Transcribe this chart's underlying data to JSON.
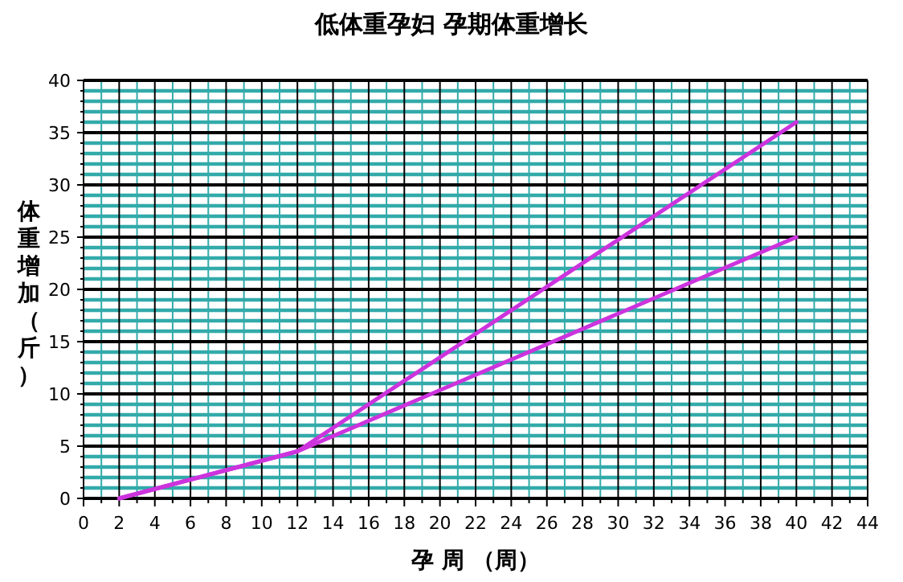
{
  "chart_data": {
    "type": "line",
    "title": "低体重孕妇  孕期体重增长",
    "xlabel": "孕  周  （周）",
    "ylabel": "体重增加（斤）",
    "xlim": [
      0,
      44
    ],
    "xticks": [
      0,
      {
        "value": 1,
        "label": null
      },
      2,
      {
        "value": 3,
        "label": null
      },
      4,
      {
        "value": 5,
        "label": null
      },
      6,
      {
        "value": 7,
        "label": null
      },
      8,
      {
        "value": 9,
        "label": null
      },
      10,
      {
        "value": 11,
        "label": null
      },
      12,
      {
        "value": 13,
        "label": null
      },
      14,
      {
        "value": 15,
        "label": null
      },
      16,
      {
        "value": 17,
        "label": null
      },
      18,
      {
        "value": 19,
        "label": null
      },
      20,
      {
        "value": 21,
        "label": null
      },
      22,
      {
        "value": 23,
        "label": null
      },
      24,
      {
        "value": 25,
        "label": null
      },
      26,
      {
        "value": 27,
        "label": null
      },
      28,
      {
        "value": 29,
        "label": null
      },
      30,
      {
        "value": 31,
        "label": null
      },
      32,
      {
        "value": 33,
        "label": null
      },
      34,
      {
        "value": 35,
        "label": null
      },
      36,
      {
        "value": 37,
        "label": null
      },
      38,
      {
        "value": 39,
        "label": null
      },
      40,
      {
        "value": 41,
        "label": null
      },
      42,
      {
        "value": 43,
        "label": null
      },
      44
    ],
    "ylim": [
      0,
      40
    ],
    "yticks": [
      0,
      {
        "value": 1,
        "label": null
      },
      {
        "value": 2,
        "label": null
      },
      {
        "value": 3,
        "label": null
      },
      {
        "value": 4,
        "label": null
      },
      5,
      {
        "value": 6,
        "label": null
      },
      {
        "value": 7,
        "label": null
      },
      {
        "value": 8,
        "label": null
      },
      {
        "value": 9,
        "label": null
      },
      10,
      {
        "value": 11,
        "label": null
      },
      {
        "value": 12,
        "label": null
      },
      {
        "value": 13,
        "label": null
      },
      {
        "value": 14,
        "label": null
      },
      15,
      {
        "value": 16,
        "label": null
      },
      {
        "value": 17,
        "label": null
      },
      {
        "value": 18,
        "label": null
      },
      {
        "value": 19,
        "label": null
      },
      20,
      {
        "value": 21,
        "label": null
      },
      {
        "value": 22,
        "label": null
      },
      {
        "value": 23,
        "label": null
      },
      {
        "value": 24,
        "label": null
      },
      25,
      {
        "value": 26,
        "label": null
      },
      {
        "value": 27,
        "label": null
      },
      {
        "value": 28,
        "label": null
      },
      {
        "value": 29,
        "label": null
      },
      30,
      {
        "value": 31,
        "label": null
      },
      {
        "value": 32,
        "label": null
      },
      {
        "value": 33,
        "label": null
      },
      {
        "value": 34,
        "label": null
      },
      35,
      {
        "value": 36,
        "label": null
      },
      {
        "value": 37,
        "label": null
      },
      {
        "value": 38,
        "label": null
      },
      {
        "value": 39,
        "label": null
      },
      40
    ],
    "grid": true,
    "marker": "none",
    "line_style": "solid",
    "series": [
      {
        "color": "#cc33dd",
        "x": [
          2,
          12,
          40
        ],
        "values": [
          0,
          4.5,
          36
        ]
      },
      {
        "color": "#cc33dd",
        "x": [
          2,
          12,
          40
        ],
        "values": [
          0,
          4.5,
          25
        ]
      }
    ]
  }
}
